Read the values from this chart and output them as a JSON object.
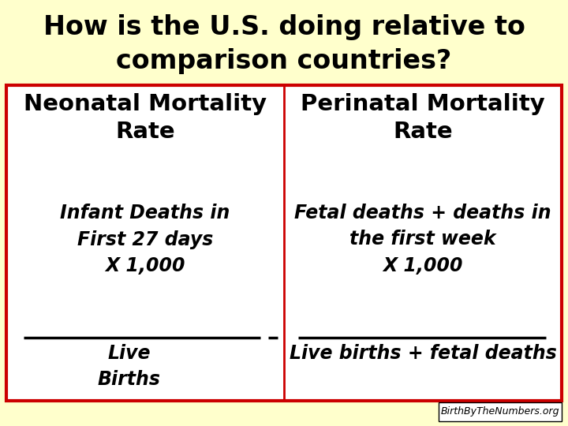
{
  "title_line1": "How is the U.S. doing relative to",
  "title_line2": "comparison countries?",
  "bg_color": "#ffffcc",
  "box_bg_color": "#ffffff",
  "box_border_color": "#cc0000",
  "title_color": "#000000",
  "left_header": "Neonatal Mortality\nRate",
  "right_header": "Perinatal Mortality\nRate",
  "left_numerator": "Infant Deaths in\nFirst 27 days\nX 1,000",
  "left_denominator": "Live\nBirths",
  "right_numerator": "Fetal deaths + deaths in\nthe first week\nX 1,000",
  "right_denominator": "Live births + fetal deaths",
  "watermark": "BirthByTheNumbers.org",
  "title_fontsize": 24,
  "header_fontsize": 21,
  "body_fontsize": 17,
  "watermark_fontsize": 9,
  "fig_width": 7.2,
  "fig_height": 5.4,
  "dpi": 100
}
